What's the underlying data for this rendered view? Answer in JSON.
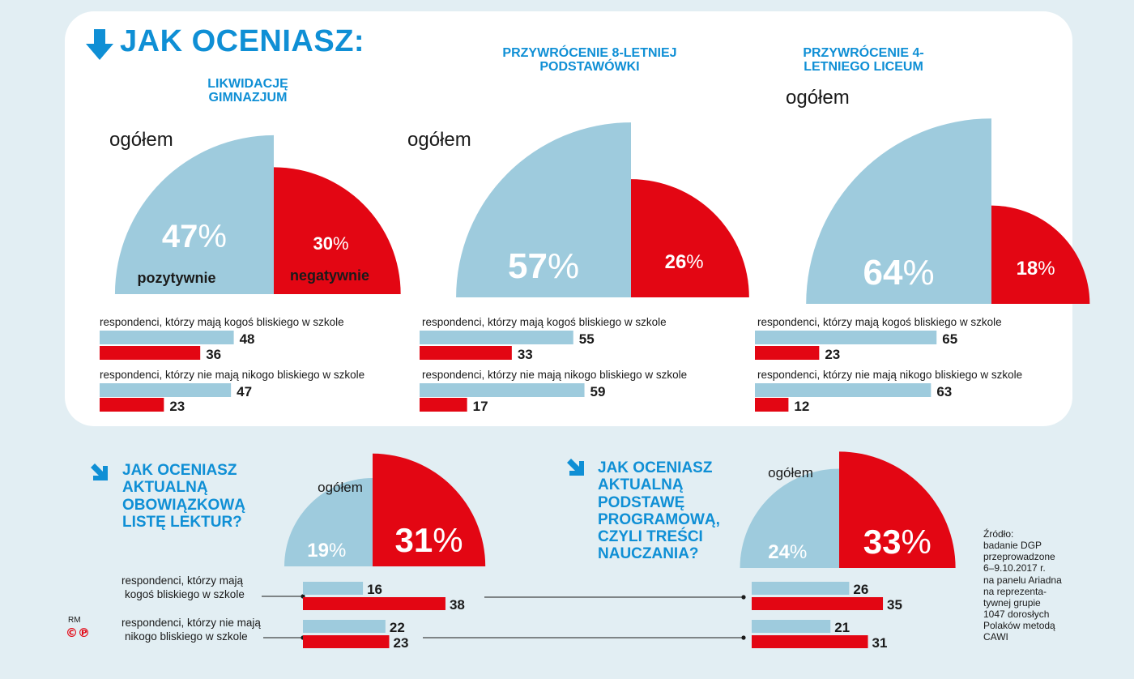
{
  "header": {
    "title": "JAK OCENIASZ:"
  },
  "colors": {
    "positive": "#9ecbdd",
    "negative": "#e30613",
    "accent": "#0f8fd5",
    "text": "#1a1a1a"
  },
  "chart_data": [
    {
      "type": "bar",
      "title": "LIKWIDACJĘ GIMNAZJUM",
      "overall_label": "ogółem",
      "series_names": [
        "pozytywnie",
        "negatywnie"
      ],
      "overall": {
        "positive": 47,
        "negative": 30
      },
      "groups": [
        {
          "label": "respondenci, którzy mają kogoś bliskiego w szkole",
          "positive": 48,
          "negative": 36
        },
        {
          "label": "respondenci, którzy nie mają nikogo bliskiego w szkole",
          "positive": 47,
          "negative": 23
        }
      ]
    },
    {
      "type": "bar",
      "title": "PRZYWRÓCENIE 8-LETNIEJ PODSTAWÓWKI",
      "overall_label": "ogółem",
      "overall": {
        "positive": 57,
        "negative": 26
      },
      "groups": [
        {
          "label": "respondenci, którzy mają kogoś bliskiego w szkole",
          "positive": 55,
          "negative": 33
        },
        {
          "label": "respondenci, którzy nie mają nikogo bliskiego w szkole",
          "positive": 59,
          "negative": 17
        }
      ]
    },
    {
      "type": "bar",
      "title": "PRZYWRÓCENIE 4-LETNIEGO LICEUM",
      "overall_label": "ogółem",
      "overall": {
        "positive": 64,
        "negative": 18
      },
      "groups": [
        {
          "label": "respondenci, którzy mają kogoś bliskiego w szkole",
          "positive": 65,
          "negative": 23
        },
        {
          "label": "respondenci, którzy nie mają nikogo bliskiego w szkole",
          "positive": 63,
          "negative": 12
        }
      ]
    },
    {
      "type": "bar",
      "title": "JAK OCENIASZ AKTUALNĄ OBOWIĄZKOWĄ LISTĘ LEKTUR?",
      "overall_label": "ogółem",
      "overall": {
        "positive": 19,
        "negative": 31
      },
      "groups": [
        {
          "label": "respondenci, którzy mają kogoś bliskiego w szkole",
          "positive": 16,
          "negative": 38
        },
        {
          "label": "respondenci, którzy nie mają nikogo bliskiego w szkole",
          "positive": 22,
          "negative": 23
        }
      ]
    },
    {
      "type": "bar",
      "title": "JAK OCENIASZ AKTUALNĄ PODSTAWĘ PROGRAMOWĄ, CZYLI TREŚCI NAUCZANIA?",
      "overall_label": "ogółem",
      "overall": {
        "positive": 24,
        "negative": 33
      },
      "groups": [
        {
          "label": "respondenci, którzy mają kogoś bliskiego w szkole",
          "positive": 26,
          "negative": 35
        },
        {
          "label": "respondenci, którzy nie mają nikogo bliskiego w szkole",
          "positive": 21,
          "negative": 31
        }
      ]
    }
  ],
  "bottom_labels": {
    "group1_line1": "respondenci, którzy mają",
    "group1_line2": "kogoś bliskiego w szkole",
    "group2_line1": "respondenci, którzy nie mają",
    "group2_line2": "nikogo bliskiego w szkole"
  },
  "source": {
    "lines": [
      "Źródło:",
      "badanie DGP",
      "przeprowadzone",
      "6–9.10.2017 r.",
      "na panelu Ariadna",
      "na reprezenta-",
      "tywnej grupie",
      "1047 dorosłych",
      "Polaków metodą",
      "CAWI"
    ]
  },
  "credit": {
    "initials": "RM",
    "symbols": "©℗"
  }
}
